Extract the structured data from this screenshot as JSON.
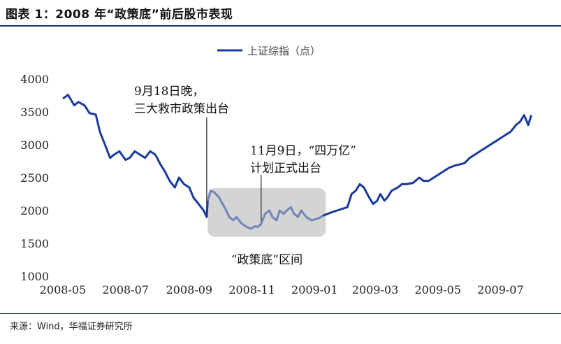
{
  "title": "图表 1：2008 年“政策底”前后股市表现",
  "source": "来源：Wind，华福证券研究所",
  "chart_data": {
    "type": "line",
    "legend": "上证综指（点）",
    "legend_position": "top-center",
    "line_color": "#1a3a9c",
    "highlight_line_color": "#6f86b8",
    "highlight_fill": "#d4d4d4",
    "ylim": [
      1000,
      4000
    ],
    "yticks": [
      "4000",
      "3500",
      "3000",
      "2500",
      "2000",
      "1500",
      "1000"
    ],
    "xticks": [
      "2008-05",
      "2008-07",
      "2008-09",
      "2008-11",
      "2009-01",
      "2009-03",
      "2009-05",
      "2009-07"
    ],
    "grid": false,
    "x_start": "2008-05-01",
    "x_end": "2009-08-01",
    "annotations": [
      {
        "lines": [
          "9月18日晚，",
          "三大救市政策出台"
        ],
        "date": "2008-09-18",
        "value": 1900
      },
      {
        "lines": [
          "11月9日，“四万亿”",
          "计划正式出台"
        ],
        "date": "2008-11-10",
        "value": 1750
      }
    ],
    "highlight_region": {
      "label": "“政策底”区间",
      "x0": "2008-09-19",
      "x1": "2009-01-12",
      "y0": 1600,
      "y1": 2340
    },
    "series": [
      {
        "name": "上证综指（点）",
        "x": [
          "2008-05-01",
          "2008-05-06",
          "2008-05-12",
          "2008-05-16",
          "2008-05-22",
          "2008-05-27",
          "2008-06-02",
          "2008-06-06",
          "2008-06-11",
          "2008-06-16",
          "2008-06-20",
          "2008-06-25",
          "2008-07-01",
          "2008-07-05",
          "2008-07-10",
          "2008-07-15",
          "2008-07-20",
          "2008-07-25",
          "2008-07-30",
          "2008-08-04",
          "2008-08-08",
          "2008-08-13",
          "2008-08-18",
          "2008-08-22",
          "2008-08-27",
          "2008-09-01",
          "2008-09-05",
          "2008-09-10",
          "2008-09-15",
          "2008-09-18",
          "2008-09-19",
          "2008-09-22",
          "2008-09-25",
          "2008-09-30",
          "2008-10-07",
          "2008-10-10",
          "2008-10-14",
          "2008-10-17",
          "2008-10-22",
          "2008-10-27",
          "2008-10-31",
          "2008-11-04",
          "2008-11-07",
          "2008-11-10",
          "2008-11-14",
          "2008-11-18",
          "2008-11-21",
          "2008-11-25",
          "2008-11-28",
          "2008-12-02",
          "2008-12-05",
          "2008-12-09",
          "2008-12-12",
          "2008-12-16",
          "2008-12-19",
          "2008-12-24",
          "2008-12-29",
          "2009-01-05",
          "2009-01-09",
          "2009-01-14",
          "2009-01-19",
          "2009-01-23",
          "2009-02-02",
          "2009-02-06",
          "2009-02-10",
          "2009-02-14",
          "2009-02-18",
          "2009-02-23",
          "2009-02-27",
          "2009-03-03",
          "2009-03-06",
          "2009-03-10",
          "2009-03-13",
          "2009-03-17",
          "2009-03-23",
          "2009-03-27",
          "2009-04-01",
          "2009-04-07",
          "2009-04-13",
          "2009-04-17",
          "2009-04-22",
          "2009-04-27",
          "2009-05-02",
          "2009-05-07",
          "2009-05-12",
          "2009-05-17",
          "2009-05-22",
          "2009-05-27",
          "2009-06-01",
          "2009-06-06",
          "2009-06-11",
          "2009-06-16",
          "2009-06-21",
          "2009-06-26",
          "2009-07-01",
          "2009-07-06",
          "2009-07-11",
          "2009-07-16",
          "2009-07-20",
          "2009-07-24",
          "2009-07-28",
          "2009-07-31"
        ],
        "values": [
          3700,
          3760,
          3600,
          3650,
          3600,
          3480,
          3460,
          3200,
          3000,
          2800,
          2850,
          2900,
          2770,
          2800,
          2900,
          2850,
          2800,
          2900,
          2850,
          2700,
          2600,
          2450,
          2350,
          2500,
          2400,
          2350,
          2200,
          2100,
          2000,
          1900,
          2150,
          2300,
          2280,
          2200,
          2000,
          1900,
          1850,
          1900,
          1800,
          1750,
          1720,
          1760,
          1750,
          1800,
          1950,
          2000,
          1900,
          1850,
          2000,
          1950,
          2000,
          2050,
          1950,
          1900,
          2000,
          1900,
          1850,
          1880,
          1920,
          1950,
          1980,
          2000,
          2050,
          2250,
          2300,
          2400,
          2350,
          2200,
          2100,
          2150,
          2250,
          2150,
          2200,
          2300,
          2350,
          2400,
          2400,
          2420,
          2500,
          2450,
          2450,
          2500,
          2550,
          2600,
          2650,
          2680,
          2700,
          2720,
          2800,
          2850,
          2900,
          2950,
          3000,
          3050,
          3100,
          3150,
          3200,
          3300,
          3350,
          3450,
          3300,
          3450
        ]
      }
    ]
  }
}
